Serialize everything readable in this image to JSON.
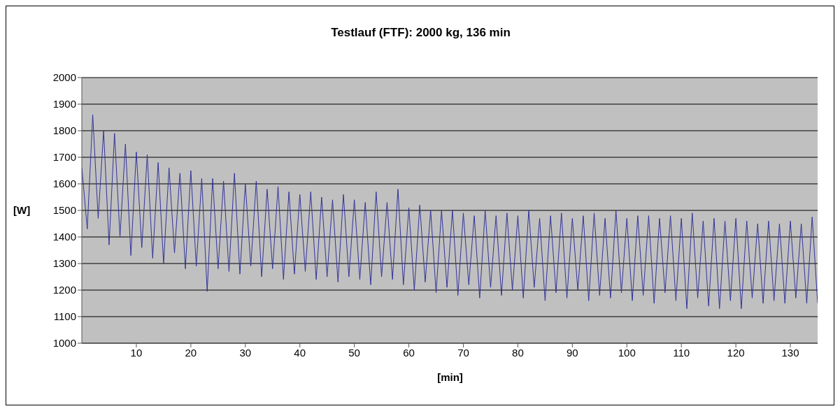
{
  "chart_data": {
    "type": "line",
    "title": "Testlauf (FTF): 2000 kg, 136 min",
    "xlabel": "[min]",
    "ylabel": "[W]",
    "x": [
      0,
      1,
      2,
      3,
      4,
      5,
      6,
      7,
      8,
      9,
      10,
      11,
      12,
      13,
      14,
      15,
      16,
      17,
      18,
      19,
      20,
      21,
      22,
      23,
      24,
      25,
      26,
      27,
      28,
      29,
      30,
      31,
      32,
      33,
      34,
      35,
      36,
      37,
      38,
      39,
      40,
      41,
      42,
      43,
      44,
      45,
      46,
      47,
      48,
      49,
      50,
      51,
      52,
      53,
      54,
      55,
      56,
      57,
      58,
      59,
      60,
      61,
      62,
      63,
      64,
      65,
      66,
      67,
      68,
      69,
      70,
      71,
      72,
      73,
      74,
      75,
      76,
      77,
      78,
      79,
      80,
      81,
      82,
      83,
      84,
      85,
      86,
      87,
      88,
      89,
      90,
      91,
      92,
      93,
      94,
      95,
      96,
      97,
      98,
      99,
      100,
      101,
      102,
      103,
      104,
      105,
      106,
      107,
      108,
      109,
      110,
      111,
      112,
      113,
      114,
      115,
      116,
      117,
      118,
      119,
      120,
      121,
      122,
      123,
      124,
      125,
      126,
      127,
      128,
      129,
      130,
      131,
      132,
      133,
      134,
      135
    ],
    "series": [
      {
        "color": "#333399",
        "values": [
          1660,
          1430,
          1860,
          1470,
          1800,
          1370,
          1790,
          1400,
          1750,
          1330,
          1720,
          1360,
          1710,
          1320,
          1680,
          1300,
          1660,
          1340,
          1640,
          1280,
          1650,
          1290,
          1620,
          1195,
          1620,
          1280,
          1610,
          1270,
          1640,
          1260,
          1600,
          1290,
          1610,
          1250,
          1580,
          1280,
          1590,
          1240,
          1570,
          1260,
          1560,
          1270,
          1570,
          1240,
          1550,
          1250,
          1540,
          1230,
          1560,
          1250,
          1540,
          1240,
          1530,
          1220,
          1570,
          1250,
          1530,
          1240,
          1580,
          1220,
          1510,
          1200,
          1520,
          1230,
          1500,
          1190,
          1500,
          1210,
          1500,
          1180,
          1490,
          1220,
          1480,
          1170,
          1500,
          1210,
          1480,
          1180,
          1490,
          1200,
          1480,
          1170,
          1500,
          1210,
          1470,
          1160,
          1480,
          1190,
          1490,
          1170,
          1470,
          1200,
          1480,
          1160,
          1490,
          1180,
          1470,
          1170,
          1500,
          1190,
          1470,
          1160,
          1480,
          1180,
          1480,
          1150,
          1470,
          1190,
          1480,
          1160,
          1470,
          1130,
          1490,
          1170,
          1460,
          1140,
          1470,
          1130,
          1460,
          1160,
          1470,
          1130,
          1460,
          1170,
          1450,
          1150,
          1460,
          1160,
          1450,
          1150,
          1460,
          1170,
          1450,
          1150,
          1475,
          1150
        ]
      }
    ],
    "xlim": [
      0,
      135
    ],
    "xticks": [
      10,
      20,
      30,
      40,
      50,
      60,
      70,
      80,
      90,
      100,
      110,
      120,
      130
    ],
    "ylim": [
      1000,
      2000
    ],
    "yticks": [
      1000,
      1100,
      1200,
      1300,
      1400,
      1500,
      1600,
      1700,
      1800,
      1900,
      2000
    ],
    "grid": "y",
    "legend": false,
    "marker": "none",
    "line_style": "solid"
  }
}
